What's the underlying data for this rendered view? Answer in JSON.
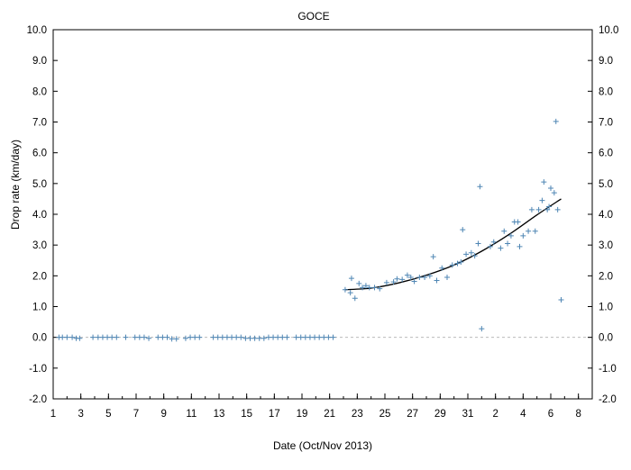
{
  "chart_data": {
    "type": "scatter",
    "title": "GOCE",
    "xlabel": "Date (Oct/Nov 2013)",
    "ylabel": "Drop rate (km/day)",
    "ylim": [
      -2.0,
      10.0
    ],
    "yticks": [
      "-2.0",
      "-1.0",
      "0.0",
      "1.0",
      "2.0",
      "3.0",
      "4.0",
      "5.0",
      "6.0",
      "7.0",
      "8.0",
      "9.0",
      "10.0"
    ],
    "y_right_axis": true,
    "xticks": [
      {
        "date": "2013-10-01",
        "label": "1"
      },
      {
        "date": "2013-10-03",
        "label": "3"
      },
      {
        "date": "2013-10-05",
        "label": "5"
      },
      {
        "date": "2013-10-07",
        "label": "7"
      },
      {
        "date": "2013-10-09",
        "label": "9"
      },
      {
        "date": "2013-10-11",
        "label": "11"
      },
      {
        "date": "2013-10-13",
        "label": "13"
      },
      {
        "date": "2013-10-15",
        "label": "15"
      },
      {
        "date": "2013-10-17",
        "label": "17"
      },
      {
        "date": "2013-10-19",
        "label": "19"
      },
      {
        "date": "2013-10-21",
        "label": "21"
      },
      {
        "date": "2013-10-23",
        "label": "23"
      },
      {
        "date": "2013-10-25",
        "label": "25"
      },
      {
        "date": "2013-10-27",
        "label": "27"
      },
      {
        "date": "2013-10-29",
        "label": "29"
      },
      {
        "date": "2013-10-31",
        "label": "31"
      },
      {
        "date": "2013-11-02",
        "label": "2"
      },
      {
        "date": "2013-11-04",
        "label": "4"
      },
      {
        "date": "2013-11-06",
        "label": "6"
      },
      {
        "date": "2013-11-08",
        "label": "8"
      }
    ],
    "xlim": [
      "2013-10-01",
      "2013-11-09"
    ],
    "grid": false,
    "legend": "none",
    "zero_line": {
      "y": 0.0,
      "style": "dashed",
      "color": "#bbbbbb"
    },
    "series": [
      {
        "marker": "+",
        "color": "#4f86b4",
        "points": [
          {
            "x": "2013-10-01T10:00",
            "y": 0.0
          },
          {
            "x": "2013-10-01T16:00",
            "y": 0.0
          },
          {
            "x": "2013-10-02T00:00",
            "y": 0.0
          },
          {
            "x": "2013-10-02T09:00",
            "y": 0.0
          },
          {
            "x": "2013-10-02T16:00",
            "y": -0.03
          },
          {
            "x": "2013-10-02T22:00",
            "y": -0.03
          },
          {
            "x": "2013-10-03T21:00",
            "y": 0.0
          },
          {
            "x": "2013-10-04T06:00",
            "y": 0.0
          },
          {
            "x": "2013-10-04T14:00",
            "y": 0.0
          },
          {
            "x": "2013-10-04T22:00",
            "y": 0.0
          },
          {
            "x": "2013-10-05T06:00",
            "y": 0.0
          },
          {
            "x": "2013-10-05T14:00",
            "y": 0.0
          },
          {
            "x": "2013-10-06T06:00",
            "y": 0.0
          },
          {
            "x": "2013-10-06T22:00",
            "y": 0.0
          },
          {
            "x": "2013-10-07T06:00",
            "y": 0.0
          },
          {
            "x": "2013-10-07T14:00",
            "y": 0.0
          },
          {
            "x": "2013-10-07T22:00",
            "y": -0.03
          },
          {
            "x": "2013-10-08T14:00",
            "y": 0.0
          },
          {
            "x": "2013-10-08T22:00",
            "y": 0.0
          },
          {
            "x": "2013-10-09T06:00",
            "y": 0.0
          },
          {
            "x": "2013-10-09T14:00",
            "y": -0.05
          },
          {
            "x": "2013-10-09T22:00",
            "y": -0.05
          },
          {
            "x": "2013-10-10T14:00",
            "y": -0.03
          },
          {
            "x": "2013-10-10T22:00",
            "y": 0.0
          },
          {
            "x": "2013-10-11T06:00",
            "y": 0.0
          },
          {
            "x": "2013-10-11T14:00",
            "y": 0.0
          },
          {
            "x": "2013-10-12T14:00",
            "y": 0.0
          },
          {
            "x": "2013-10-12T22:00",
            "y": 0.0
          },
          {
            "x": "2013-10-13T06:00",
            "y": 0.0
          },
          {
            "x": "2013-10-13T14:00",
            "y": 0.0
          },
          {
            "x": "2013-10-13T22:00",
            "y": 0.0
          },
          {
            "x": "2013-10-14T06:00",
            "y": 0.0
          },
          {
            "x": "2013-10-14T14:00",
            "y": 0.0
          },
          {
            "x": "2013-10-14T22:00",
            "y": -0.03
          },
          {
            "x": "2013-10-15T06:00",
            "y": -0.03
          },
          {
            "x": "2013-10-15T14:00",
            "y": -0.03
          },
          {
            "x": "2013-10-15T22:00",
            "y": -0.03
          },
          {
            "x": "2013-10-16T06:00",
            "y": -0.03
          },
          {
            "x": "2013-10-16T14:00",
            "y": 0.0
          },
          {
            "x": "2013-10-16T22:00",
            "y": 0.0
          },
          {
            "x": "2013-10-17T06:00",
            "y": 0.0
          },
          {
            "x": "2013-10-17T14:00",
            "y": 0.0
          },
          {
            "x": "2013-10-17T22:00",
            "y": 0.0
          },
          {
            "x": "2013-10-18T14:00",
            "y": 0.0
          },
          {
            "x": "2013-10-18T22:00",
            "y": 0.0
          },
          {
            "x": "2013-10-19T06:00",
            "y": 0.0
          },
          {
            "x": "2013-10-19T14:00",
            "y": 0.0
          },
          {
            "x": "2013-10-19T22:00",
            "y": 0.0
          },
          {
            "x": "2013-10-20T06:00",
            "y": 0.0
          },
          {
            "x": "2013-10-20T14:00",
            "y": 0.0
          },
          {
            "x": "2013-10-20T22:00",
            "y": 0.0
          },
          {
            "x": "2013-10-21T06:00",
            "y": 0.0
          },
          {
            "x": "2013-10-22T03:00",
            "y": 1.55
          },
          {
            "x": "2013-10-22T12:00",
            "y": 1.45
          },
          {
            "x": "2013-10-22T14:00",
            "y": 1.92
          },
          {
            "x": "2013-10-22T20:00",
            "y": 1.27
          },
          {
            "x": "2013-10-23T03:00",
            "y": 1.75
          },
          {
            "x": "2013-10-23T09:00",
            "y": 1.62
          },
          {
            "x": "2013-10-23T15:00",
            "y": 1.68
          },
          {
            "x": "2013-10-23T21:00",
            "y": 1.62
          },
          {
            "x": "2013-10-24T06:00",
            "y": 1.62
          },
          {
            "x": "2013-10-24T15:00",
            "y": 1.58
          },
          {
            "x": "2013-10-25T03:00",
            "y": 1.78
          },
          {
            "x": "2013-10-25T15:00",
            "y": 1.8
          },
          {
            "x": "2013-10-25T21:00",
            "y": 1.9
          },
          {
            "x": "2013-10-26T06:00",
            "y": 1.88
          },
          {
            "x": "2013-10-26T15:00",
            "y": 2.02
          },
          {
            "x": "2013-10-26T21:00",
            "y": 1.95
          },
          {
            "x": "2013-10-27T03:00",
            "y": 1.82
          },
          {
            "x": "2013-10-27T12:00",
            "y": 1.95
          },
          {
            "x": "2013-10-27T21:00",
            "y": 1.95
          },
          {
            "x": "2013-10-28T06:00",
            "y": 2.0
          },
          {
            "x": "2013-10-28T12:00",
            "y": 2.62
          },
          {
            "x": "2013-10-28T18:00",
            "y": 1.85
          },
          {
            "x": "2013-10-29T03:00",
            "y": 2.25
          },
          {
            "x": "2013-10-29T12:00",
            "y": 1.95
          },
          {
            "x": "2013-10-29T21:00",
            "y": 2.35
          },
          {
            "x": "2013-10-30T06:00",
            "y": 2.4
          },
          {
            "x": "2013-10-30T12:00",
            "y": 2.45
          },
          {
            "x": "2013-10-30T15:00",
            "y": 3.5
          },
          {
            "x": "2013-10-30T21:00",
            "y": 2.7
          },
          {
            "x": "2013-10-31T06:00",
            "y": 2.75
          },
          {
            "x": "2013-10-31T12:00",
            "y": 2.65
          },
          {
            "x": "2013-10-31T18:00",
            "y": 3.05
          },
          {
            "x": "2013-10-31T21:00",
            "y": 4.9
          },
          {
            "x": "2013-11-01T00:00",
            "y": 0.28
          },
          {
            "x": "2013-11-01T15:00",
            "y": 2.95
          },
          {
            "x": "2013-11-01T21:00",
            "y": 3.1
          },
          {
            "x": "2013-11-02T09:00",
            "y": 2.9
          },
          {
            "x": "2013-11-02T15:00",
            "y": 3.45
          },
          {
            "x": "2013-11-02T21:00",
            "y": 3.05
          },
          {
            "x": "2013-11-03T03:00",
            "y": 3.3
          },
          {
            "x": "2013-11-03T09:00",
            "y": 3.75
          },
          {
            "x": "2013-11-03T15:00",
            "y": 3.75
          },
          {
            "x": "2013-11-03T18:00",
            "y": 2.95
          },
          {
            "x": "2013-11-04T00:00",
            "y": 3.3
          },
          {
            "x": "2013-11-04T09:00",
            "y": 3.45
          },
          {
            "x": "2013-11-04T15:00",
            "y": 4.15
          },
          {
            "x": "2013-11-04T21:00",
            "y": 3.45
          },
          {
            "x": "2013-11-05T03:00",
            "y": 4.15
          },
          {
            "x": "2013-11-05T09:00",
            "y": 4.45
          },
          {
            "x": "2013-11-05T12:00",
            "y": 5.05
          },
          {
            "x": "2013-11-05T18:00",
            "y": 4.15
          },
          {
            "x": "2013-11-05T21:00",
            "y": 4.25
          },
          {
            "x": "2013-11-06T00:00",
            "y": 4.85
          },
          {
            "x": "2013-11-06T06:00",
            "y": 4.7
          },
          {
            "x": "2013-11-06T09:00",
            "y": 7.02
          },
          {
            "x": "2013-11-06T12:00",
            "y": 4.15
          },
          {
            "x": "2013-11-06T18:00",
            "y": 1.22
          }
        ]
      },
      {
        "type": "line",
        "style": "fit",
        "color": "#000000",
        "points": [
          {
            "x": "2013-10-22T03:00",
            "y": 1.55
          },
          {
            "x": "2013-10-24T00:00",
            "y": 1.6
          },
          {
            "x": "2013-10-26T00:00",
            "y": 1.77
          },
          {
            "x": "2013-10-28T00:00",
            "y": 2.02
          },
          {
            "x": "2013-10-30T00:00",
            "y": 2.35
          },
          {
            "x": "2013-11-01T00:00",
            "y": 2.8
          },
          {
            "x": "2013-11-03T00:00",
            "y": 3.35
          },
          {
            "x": "2013-11-05T00:00",
            "y": 3.98
          },
          {
            "x": "2013-11-06T18:00",
            "y": 4.5
          }
        ]
      }
    ]
  }
}
